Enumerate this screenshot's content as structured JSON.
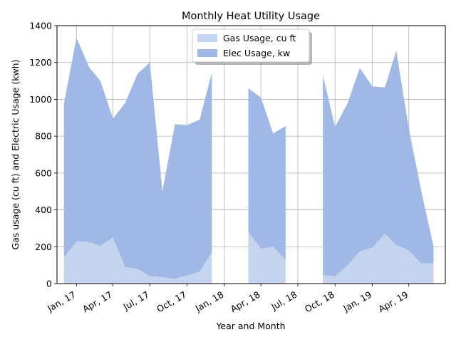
{
  "chart_data": {
    "type": "area",
    "title": "Monthly Heat Utility Usage",
    "xlabel": "Year and Month",
    "ylabel": "Gas usage (cu ft) and Electric Usage (kwh)",
    "ylim": [
      0,
      1400
    ],
    "yticks": [
      0,
      200,
      400,
      600,
      800,
      1000,
      1200,
      1400
    ],
    "xlim": [
      "2016-11-14",
      "2019-06-30"
    ],
    "xticks": [
      {
        "date": "2017-01-01",
        "label": "Jan, 17"
      },
      {
        "date": "2017-04-01",
        "label": "Apr, 17"
      },
      {
        "date": "2017-07-01",
        "label": "Jul, 17"
      },
      {
        "date": "2017-10-01",
        "label": "Oct, 17"
      },
      {
        "date": "2018-01-01",
        "label": "Jan, 18"
      },
      {
        "date": "2018-04-01",
        "label": "Apr, 18"
      },
      {
        "date": "2018-07-01",
        "label": "Jul, 18"
      },
      {
        "date": "2018-10-01",
        "label": "Oct, 18"
      },
      {
        "date": "2019-01-01",
        "label": "Jan, 19"
      },
      {
        "date": "2019-04-01",
        "label": "Apr, 19"
      }
    ],
    "grid": true,
    "legend_position": "top-center",
    "stacked": true,
    "series": [
      {
        "name": "Gas Usage, cu ft",
        "color": "#c5d4ee",
        "segments": [
          {
            "x": [
              "2016-12-01",
              "2017-01-01",
              "2017-02-01",
              "2017-03-01",
              "2017-04-01",
              "2017-05-01",
              "2017-06-01",
              "2017-07-01",
              "2017-08-01",
              "2017-09-01",
              "2017-10-01",
              "2017-11-01",
              "2017-12-01"
            ],
            "values": [
              140,
              230,
              225,
              205,
              250,
              90,
              80,
              40,
              35,
              25,
              45,
              65,
              170
            ]
          },
          {
            "x": [
              "2018-03-01",
              "2018-04-01",
              "2018-05-01",
              "2018-06-01"
            ],
            "values": [
              280,
              190,
              200,
              130
            ]
          },
          {
            "x": [
              "2018-09-01",
              "2018-10-01",
              "2018-11-01",
              "2018-12-01",
              "2019-01-01",
              "2019-02-01",
              "2019-03-01",
              "2019-04-01",
              "2019-05-01",
              "2019-06-01"
            ],
            "values": [
              45,
              40,
              100,
              175,
              195,
              270,
              210,
              180,
              110,
              110
            ]
          }
        ]
      },
      {
        "name": "Elec Usage, kw",
        "color": "#9fb8e6",
        "segments": [
          {
            "x": [
              "2016-12-01",
              "2017-01-01",
              "2017-02-01",
              "2017-03-01",
              "2017-04-01",
              "2017-05-01",
              "2017-06-01",
              "2017-07-01",
              "2017-08-01",
              "2017-09-01",
              "2017-10-01",
              "2017-11-01",
              "2017-12-01"
            ],
            "values": [
              835,
              1105,
              950,
              895,
              645,
              890,
              1060,
              1160,
              465,
              840,
              815,
              825,
              975
            ]
          },
          {
            "x": [
              "2018-03-01",
              "2018-04-01",
              "2018-05-01",
              "2018-06-01"
            ],
            "values": [
              780,
              820,
              615,
              725
            ]
          },
          {
            "x": [
              "2018-09-01",
              "2018-10-01",
              "2018-11-01",
              "2018-12-01",
              "2019-01-01",
              "2019-02-01",
              "2019-03-01",
              "2019-04-01",
              "2019-05-01",
              "2019-06-01"
            ],
            "values": [
              1085,
              810,
              880,
              995,
              875,
              795,
              1055,
              660,
              400,
              90
            ]
          }
        ]
      }
    ]
  }
}
